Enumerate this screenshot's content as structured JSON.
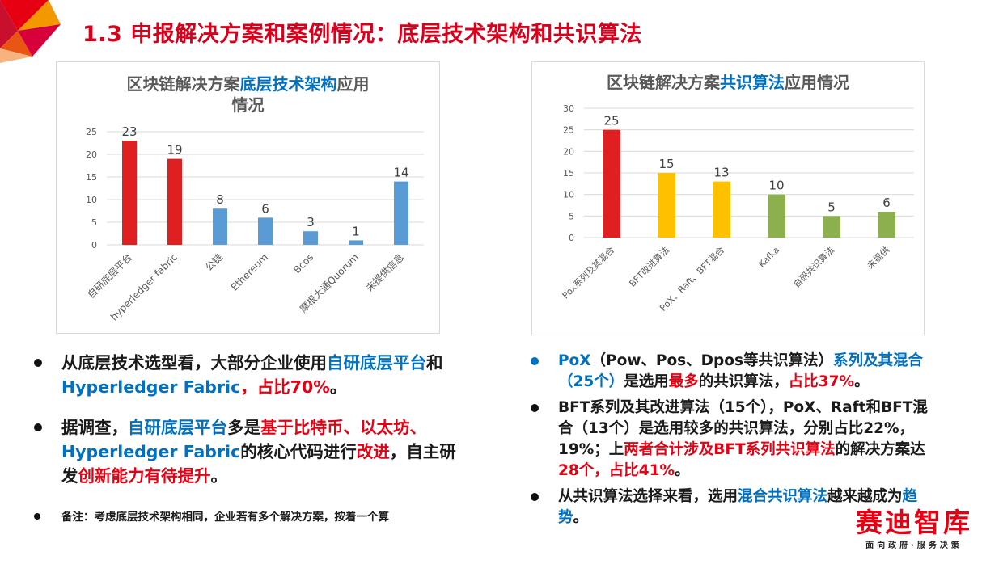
{
  "page": {
    "title": "1.3 申报解决方案和案例情况：底层技术架构和共识算法"
  },
  "left_chart_panel": {
    "title_part1": "区块链解决方案",
    "title_highlight": "底层技术架构",
    "title_part2": "应用",
    "title_line2": "情况"
  },
  "right_chart_panel": {
    "title_part1": "区块链解决方案",
    "title_highlight": "共识算法",
    "title_part2": "应用情况"
  },
  "chart_data": [
    {
      "type": "bar",
      "title": "区块链解决方案底层技术架构应用情况",
      "categories": [
        "自研底层平台",
        "hyperledger fabric",
        "公链",
        "Ethereum",
        "Bcos",
        "摩根大通Quorum",
        "未提供信息"
      ],
      "values": [
        23,
        19,
        8,
        6,
        3,
        1,
        14
      ],
      "colors": [
        "#e02020",
        "#e02020",
        "#5b9bd5",
        "#5b9bd5",
        "#5b9bd5",
        "#5b9bd5",
        "#5b9bd5"
      ],
      "ylim": [
        0,
        25
      ],
      "yticks": [
        0,
        5,
        10,
        15,
        20,
        25
      ],
      "grid": true,
      "data_labels": true
    },
    {
      "type": "bar",
      "title": "区块链解决方案共识算法应用情况",
      "categories": [
        "Pox系列及其混合",
        "BFT改进算法",
        "PoX、Raft、BFT混合",
        "Kafka",
        "自研共识算法",
        "未提供"
      ],
      "values": [
        25,
        15,
        13,
        10,
        5,
        6
      ],
      "colors": [
        "#e02020",
        "#ffc000",
        "#ffc000",
        "#8db04e",
        "#8db04e",
        "#8db04e"
      ],
      "ylim": [
        0,
        30
      ],
      "yticks": [
        0,
        5,
        10,
        15,
        20,
        25,
        30
      ],
      "grid": true,
      "data_labels": true
    }
  ],
  "left_bullets": {
    "b1": {
      "t1": "从底层技术选型看，大部分企业使用",
      "t2": "自研底层平台",
      "t3": "和",
      "t4": "Hyperledger Fabric",
      "t5": "，",
      "t6": "占比70%",
      "t7": "。"
    },
    "b2": {
      "t1": "据调查，",
      "t2": "自研底层平台",
      "t3": "多是",
      "t4": "基于比特币、以太坊、",
      "t5": "Hyperledger Fabric",
      "t6": "的核心代码进行",
      "t7": "改进",
      "t8": "，自主研发",
      "t9": "创新能力有待提升",
      "t10": "。"
    },
    "note": "备注：考虑底层技术架构相同，企业若有多个解决方案，按着一个算"
  },
  "right_bullets": {
    "b1": {
      "t1": "PoX",
      "t2": "（Pow、Pos、Dpos等共识算法）",
      "t3": "系列及其混合",
      "t4": "（25个）",
      "t5": "是选用",
      "t6": "最多",
      "t7": "的共识算法，",
      "t8": "占比37%",
      "t9": "。"
    },
    "b2": {
      "t1": "BFT系列及其改进算法（15个），PoX、Raft和BFT混合（13个）是选用较多的共识算法，分别占比22%，19%；上",
      "t2": "两者合计涉及BFT系列共识算法",
      "t3": "的解决方案达",
      "t4": "28个，占比41%",
      "t5": "。"
    },
    "b3": {
      "t1": "从共识算法选择来看，选用",
      "t2": "混合共识算法",
      "t3": "越来越成为",
      "t4": "趋势",
      "t5": "。"
    }
  },
  "logo": {
    "main": "赛迪智库",
    "sub": "面向政府·服务决策"
  }
}
